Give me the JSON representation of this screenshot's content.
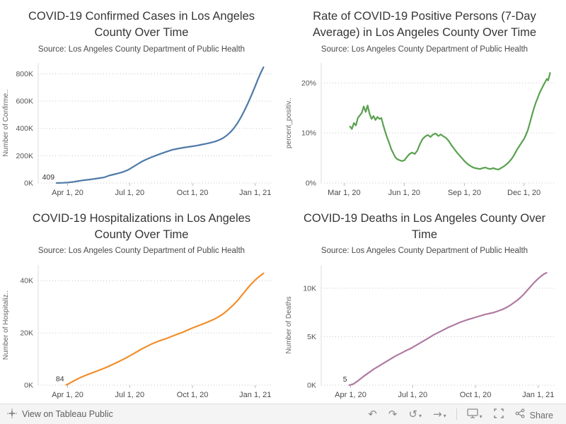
{
  "footer": {
    "view_on_tableau": "View on Tableau Public",
    "share": "Share",
    "glyphs": {
      "undo": "↶",
      "redo": "↷",
      "reset": "↺",
      "forward": "→",
      "caret": "▾"
    }
  },
  "chart_data": [
    {
      "type": "line",
      "title": "COVID-19 Confirmed Cases in Los Angeles County Over Time",
      "subtitle": "Source: Los Angeles County Department of Public Health",
      "ylabel": "Number of Confirme..",
      "color": "#4e79a7",
      "x_domain": [
        -12,
        330
      ],
      "y_domain": [
        0,
        880
      ],
      "y_ticks": [
        {
          "v": 0,
          "label": "0K"
        },
        {
          "v": 200,
          "label": "200K"
        },
        {
          "v": 400,
          "label": "400K"
        },
        {
          "v": 600,
          "label": "600K"
        },
        {
          "v": 800,
          "label": "800K"
        }
      ],
      "x_ticks": [
        {
          "v": 31,
          "label": "Apr 1, 20"
        },
        {
          "v": 122,
          "label": "Jul 1, 20"
        },
        {
          "v": 214,
          "label": "Oct 1, 20"
        },
        {
          "v": 306,
          "label": "Jan 1, 21"
        }
      ],
      "annotation": {
        "text": "409",
        "x": 15,
        "y": 0.409
      },
      "points": [
        [
          15,
          0.409
        ],
        [
          18,
          0.7
        ],
        [
          21,
          1.2
        ],
        [
          24,
          1.8
        ],
        [
          27,
          2.6
        ],
        [
          31,
          3.5
        ],
        [
          35,
          5.5
        ],
        [
          40,
          9
        ],
        [
          45,
          13
        ],
        [
          50,
          17
        ],
        [
          55,
          20.5
        ],
        [
          61,
          24
        ],
        [
          66,
          27.5
        ],
        [
          72,
          31.5
        ],
        [
          78,
          36
        ],
        [
          85,
          42
        ],
        [
          92,
          55
        ],
        [
          98,
          62
        ],
        [
          105,
          71
        ],
        [
          112,
          81
        ],
        [
          118,
          92
        ],
        [
          122,
          103
        ],
        [
          128,
          121
        ],
        [
          134,
          140
        ],
        [
          140,
          158
        ],
        [
          146,
          172
        ],
        [
          153,
          187
        ],
        [
          160,
          201
        ],
        [
          167,
          214
        ],
        [
          174,
          226
        ],
        [
          184,
          243
        ],
        [
          192,
          251
        ],
        [
          200,
          259
        ],
        [
          207,
          264
        ],
        [
          214,
          269
        ],
        [
          221,
          275
        ],
        [
          228,
          282
        ],
        [
          235,
          289
        ],
        [
          241,
          296
        ],
        [
          247,
          304
        ],
        [
          253,
          315
        ],
        [
          259,
          330
        ],
        [
          265,
          352
        ],
        [
          270,
          375
        ],
        [
          275,
          404
        ],
        [
          280,
          440
        ],
        [
          285,
          482
        ],
        [
          290,
          530
        ],
        [
          295,
          582
        ],
        [
          300,
          640
        ],
        [
          306,
          710
        ],
        [
          310,
          762
        ],
        [
          314,
          808
        ],
        [
          318,
          848
        ]
      ]
    },
    {
      "type": "line",
      "title": "Rate of COVID-19 Positive Persons (7-Day Average) in Los Angeles County Over Time",
      "subtitle": "Source: Los Angeles County Department of Public Health",
      "ylabel": "percent_positiv..",
      "color": "#59a14f",
      "x_domain": [
        -35,
        322
      ],
      "y_domain": [
        0,
        24
      ],
      "y_ticks": [
        {
          "v": 0,
          "label": "0%"
        },
        {
          "v": 10,
          "label": "10%"
        },
        {
          "v": 20,
          "label": "20%"
        }
      ],
      "x_ticks": [
        {
          "v": 0,
          "label": "Mar 1, 20"
        },
        {
          "v": 92,
          "label": "Jun 1, 20"
        },
        {
          "v": 184,
          "label": "Sep 1, 20"
        },
        {
          "v": 275,
          "label": "Dec 1, 20"
        }
      ],
      "annotation": null,
      "points": [
        [
          9,
          11.3
        ],
        [
          12,
          10.8
        ],
        [
          15,
          12
        ],
        [
          18,
          11.5
        ],
        [
          21,
          13
        ],
        [
          24,
          13.5
        ],
        [
          27,
          14
        ],
        [
          30,
          15.3
        ],
        [
          33,
          14.2
        ],
        [
          36,
          15.5
        ],
        [
          39,
          13.8
        ],
        [
          42,
          12.8
        ],
        [
          45,
          13.4
        ],
        [
          48,
          12.6
        ],
        [
          51,
          13.2
        ],
        [
          54,
          12.8
        ],
        [
          57,
          13
        ],
        [
          60,
          11.5
        ],
        [
          63,
          10.2
        ],
        [
          66,
          9
        ],
        [
          69,
          8
        ],
        [
          72,
          6.8
        ],
        [
          75,
          6
        ],
        [
          78,
          5.2
        ],
        [
          81,
          4.8
        ],
        [
          84,
          4.6
        ],
        [
          88,
          4.4
        ],
        [
          92,
          4.5
        ],
        [
          96,
          5.2
        ],
        [
          100,
          5.8
        ],
        [
          104,
          6.1
        ],
        [
          108,
          5.8
        ],
        [
          112,
          6.5
        ],
        [
          116,
          7.8
        ],
        [
          120,
          8.8
        ],
        [
          124,
          9.3
        ],
        [
          128,
          9.6
        ],
        [
          132,
          9.2
        ],
        [
          136,
          9.7
        ],
        [
          140,
          9.9
        ],
        [
          144,
          9.4
        ],
        [
          148,
          9.7
        ],
        [
          152,
          9.3
        ],
        [
          156,
          9
        ],
        [
          160,
          8.4
        ],
        [
          164,
          7.6
        ],
        [
          168,
          6.9
        ],
        [
          172,
          6.2
        ],
        [
          176,
          5.6
        ],
        [
          180,
          5
        ],
        [
          184,
          4.4
        ],
        [
          188,
          3.9
        ],
        [
          192,
          3.5
        ],
        [
          196,
          3.2
        ],
        [
          200,
          3
        ],
        [
          204,
          2.9
        ],
        [
          208,
          2.8
        ],
        [
          212,
          3
        ],
        [
          216,
          3.1
        ],
        [
          220,
          2.9
        ],
        [
          224,
          2.8
        ],
        [
          228,
          3
        ],
        [
          232,
          2.8
        ],
        [
          236,
          2.7
        ],
        [
          240,
          3
        ],
        [
          244,
          3.3
        ],
        [
          248,
          3.7
        ],
        [
          252,
          4.2
        ],
        [
          256,
          4.8
        ],
        [
          260,
          5.6
        ],
        [
          264,
          6.6
        ],
        [
          268,
          7.4
        ],
        [
          272,
          8.2
        ],
        [
          275,
          8.8
        ],
        [
          278,
          9.6
        ],
        [
          281,
          10.6
        ],
        [
          284,
          12
        ],
        [
          287,
          13.4
        ],
        [
          290,
          14.8
        ],
        [
          293,
          16
        ],
        [
          296,
          17
        ],
        [
          299,
          18
        ],
        [
          302,
          18.8
        ],
        [
          305,
          19.6
        ],
        [
          308,
          20.3
        ],
        [
          310,
          20.8
        ],
        [
          312,
          20.5
        ],
        [
          315,
          22
        ]
      ]
    },
    {
      "type": "line",
      "title": "COVID-19 Hospitalizations in Los Angeles County Over Time",
      "subtitle": "Source: Los Angeles County Department of Public Health",
      "ylabel": "Number of Hospitaliz..",
      "color": "#f28e2b",
      "x_domain": [
        -12,
        330
      ],
      "y_domain": [
        0,
        46
      ],
      "y_ticks": [
        {
          "v": 0,
          "label": "0K"
        },
        {
          "v": 20,
          "label": "20K"
        },
        {
          "v": 40,
          "label": "40K"
        }
      ],
      "x_ticks": [
        {
          "v": 31,
          "label": "Apr 1, 20"
        },
        {
          "v": 122,
          "label": "Jul 1, 20"
        },
        {
          "v": 214,
          "label": "Oct 1, 20"
        },
        {
          "v": 306,
          "label": "Jan 1, 21"
        }
      ],
      "annotation": {
        "text": "84",
        "x": 29,
        "y": 0.084
      },
      "points": [
        [
          29,
          0.084
        ],
        [
          31,
          0.3
        ],
        [
          35,
          0.9
        ],
        [
          40,
          1.6
        ],
        [
          45,
          2.3
        ],
        [
          50,
          2.9
        ],
        [
          55,
          3.5
        ],
        [
          61,
          4.1
        ],
        [
          66,
          4.6
        ],
        [
          72,
          5.2
        ],
        [
          78,
          5.8
        ],
        [
          85,
          6.5
        ],
        [
          92,
          7.3
        ],
        [
          98,
          8
        ],
        [
          105,
          8.9
        ],
        [
          112,
          9.8
        ],
        [
          118,
          10.6
        ],
        [
          122,
          11.2
        ],
        [
          128,
          12.1
        ],
        [
          134,
          13
        ],
        [
          140,
          13.9
        ],
        [
          146,
          14.7
        ],
        [
          153,
          15.6
        ],
        [
          160,
          16.4
        ],
        [
          167,
          17.1
        ],
        [
          174,
          17.7
        ],
        [
          184,
          18.7
        ],
        [
          192,
          19.5
        ],
        [
          200,
          20.3
        ],
        [
          207,
          21.1
        ],
        [
          214,
          21.9
        ],
        [
          221,
          22.6
        ],
        [
          228,
          23.3
        ],
        [
          235,
          24
        ],
        [
          241,
          24.7
        ],
        [
          247,
          25.4
        ],
        [
          253,
          26.3
        ],
        [
          259,
          27.3
        ],
        [
          265,
          28.6
        ],
        [
          270,
          29.8
        ],
        [
          275,
          31
        ],
        [
          280,
          32.4
        ],
        [
          285,
          34
        ],
        [
          290,
          35.6
        ],
        [
          295,
          37.2
        ],
        [
          300,
          38.7
        ],
        [
          306,
          40.3
        ],
        [
          310,
          41.2
        ],
        [
          314,
          42
        ],
        [
          318,
          42.8
        ]
      ]
    },
    {
      "type": "line",
      "title": "COVID-19 Deaths in Los Angeles County Over Time",
      "subtitle": "Source: Los Angeles County Department of Public Health",
      "ylabel": "Number of Deaths",
      "color": "#b07aa1",
      "x_domain": [
        -12,
        330
      ],
      "y_domain": [
        0,
        12.4
      ],
      "y_ticks": [
        {
          "v": 0,
          "label": "0K"
        },
        {
          "v": 5,
          "label": "5K"
        },
        {
          "v": 10,
          "label": "10K"
        }
      ],
      "x_ticks": [
        {
          "v": 31,
          "label": "Apr 1, 20"
        },
        {
          "v": 122,
          "label": "Jul 1, 20"
        },
        {
          "v": 214,
          "label": "Oct 1, 20"
        },
        {
          "v": 306,
          "label": "Jan 1, 21"
        }
      ],
      "annotation": {
        "text": "5",
        "x": 29,
        "y": 0.005
      },
      "points": [
        [
          29,
          0.005
        ],
        [
          31,
          0.03
        ],
        [
          35,
          0.12
        ],
        [
          40,
          0.35
        ],
        [
          45,
          0.62
        ],
        [
          50,
          0.9
        ],
        [
          55,
          1.15
        ],
        [
          61,
          1.45
        ],
        [
          66,
          1.7
        ],
        [
          72,
          1.95
        ],
        [
          78,
          2.2
        ],
        [
          85,
          2.5
        ],
        [
          92,
          2.8
        ],
        [
          98,
          3.05
        ],
        [
          105,
          3.3
        ],
        [
          112,
          3.55
        ],
        [
          118,
          3.75
        ],
        [
          122,
          3.9
        ],
        [
          128,
          4.15
        ],
        [
          134,
          4.4
        ],
        [
          140,
          4.65
        ],
        [
          146,
          4.9
        ],
        [
          153,
          5.2
        ],
        [
          160,
          5.45
        ],
        [
          167,
          5.7
        ],
        [
          174,
          5.95
        ],
        [
          184,
          6.25
        ],
        [
          192,
          6.5
        ],
        [
          200,
          6.7
        ],
        [
          207,
          6.85
        ],
        [
          214,
          7
        ],
        [
          221,
          7.15
        ],
        [
          228,
          7.3
        ],
        [
          235,
          7.4
        ],
        [
          241,
          7.5
        ],
        [
          247,
          7.65
        ],
        [
          253,
          7.8
        ],
        [
          259,
          8
        ],
        [
          265,
          8.25
        ],
        [
          270,
          8.5
        ],
        [
          275,
          8.75
        ],
        [
          280,
          9.05
        ],
        [
          285,
          9.4
        ],
        [
          290,
          9.8
        ],
        [
          295,
          10.2
        ],
        [
          300,
          10.6
        ],
        [
          306,
          11
        ],
        [
          310,
          11.25
        ],
        [
          314,
          11.45
        ],
        [
          318,
          11.6
        ]
      ]
    }
  ]
}
